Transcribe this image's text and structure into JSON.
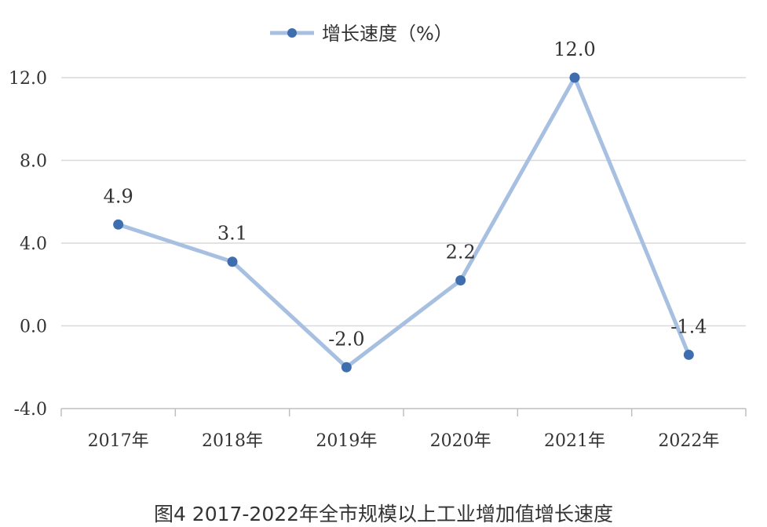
{
  "caption": "图4  2017-2022年全市规模以上工业增加值增长速度",
  "chart_data": {
    "type": "line",
    "categories": [
      "2017年",
      "2018年",
      "2019年",
      "2020年",
      "2021年",
      "2022年"
    ],
    "series": [
      {
        "name": "增长速度（%）",
        "values": [
          4.9,
          3.1,
          -2.0,
          2.2,
          12.0,
          -1.4
        ],
        "data_labels": [
          "4.9",
          "3.1",
          "-2.0",
          "2.2",
          "12.0",
          "-1.4"
        ]
      }
    ],
    "ylim": [
      -4.0,
      12.0
    ],
    "yticks": [
      -4.0,
      0.0,
      4.0,
      8.0,
      12.0
    ],
    "ytick_labels": [
      "-4.0",
      "0.0",
      "4.0",
      "8.0",
      "12.0"
    ],
    "grid": true,
    "legend_position": "top-center",
    "colors": {
      "line": "#a7c0e1",
      "marker": "#3f6eb0",
      "grid": "#d9d9d9",
      "axis": "#bfbfbf",
      "text": "#333333"
    }
  }
}
